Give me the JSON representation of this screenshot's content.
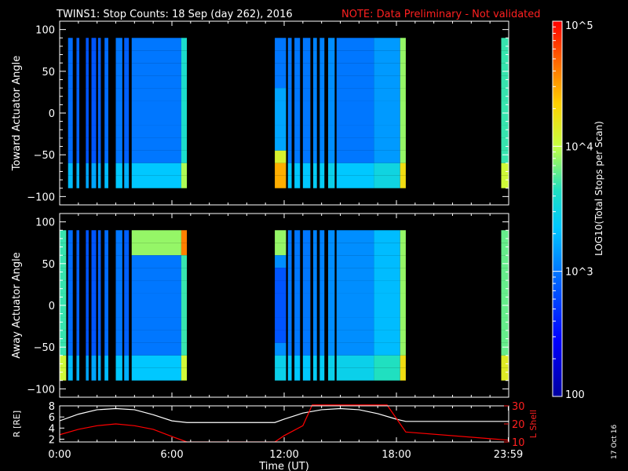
{
  "title": "TWINS1: Stop Counts: 18 Sep (day 262), 2016",
  "note": "NOTE: Data Preliminary - Not validated",
  "stamp": "17 Oct 16",
  "colorbar": {
    "label": "LOG10(Total Stops per Scan)",
    "ticks": [
      {
        "value": 100,
        "label": "100"
      },
      {
        "value": 1000,
        "label": "10^3"
      },
      {
        "value": 10000,
        "label": "10^4"
      },
      {
        "value": 100000,
        "label": "10^5"
      }
    ],
    "range": [
      100,
      100000
    ],
    "scale": "log"
  },
  "chart_data": [
    {
      "type": "heatmap",
      "ylabel": "Toward Actuator Angle",
      "xlim": [
        0,
        24
      ],
      "ylim": [
        -110,
        110
      ],
      "yticks": [
        -100,
        -50,
        0,
        50,
        100
      ],
      "xticks": [
        0,
        6,
        12,
        18,
        24
      ],
      "note": "Spectrogram of log10 stop counts vs time (UT hours) and actuator angle (-90 to 90 deg)",
      "data_blocks": [
        {
          "start": 0.45,
          "end": 0.7,
          "level": 2.95
        },
        {
          "start": 0.9,
          "end": 1.05,
          "level": 2.9
        },
        {
          "start": 1.4,
          "end": 1.55,
          "level": 2.85
        },
        {
          "start": 1.7,
          "end": 1.95,
          "level": 2.85
        },
        {
          "start": 2.05,
          "end": 2.2,
          "level": 2.9
        },
        {
          "start": 2.4,
          "end": 2.6,
          "level": 2.95
        },
        {
          "start": 3.0,
          "end": 3.35,
          "level": 3.0
        },
        {
          "start": 3.45,
          "end": 3.7,
          "level": 2.9
        },
        {
          "start": 3.85,
          "end": 6.5,
          "level": 3.0
        },
        {
          "start": 6.5,
          "end": 6.8,
          "level": 3.6
        },
        {
          "start": 11.5,
          "end": 12.1,
          "level": 3.2
        },
        {
          "start": 12.2,
          "end": 12.4,
          "level": 3.0
        },
        {
          "start": 12.55,
          "end": 12.85,
          "level": 3.0
        },
        {
          "start": 13.0,
          "end": 13.4,
          "level": 3.0
        },
        {
          "start": 13.55,
          "end": 13.75,
          "level": 3.05
        },
        {
          "start": 13.9,
          "end": 14.15,
          "level": 3.05
        },
        {
          "start": 14.35,
          "end": 14.7,
          "level": 3.1
        },
        {
          "start": 14.8,
          "end": 16.8,
          "level": 3.0
        },
        {
          "start": 16.8,
          "end": 18.2,
          "level": 3.15
        },
        {
          "start": 18.2,
          "end": 18.5,
          "level": 3.9
        },
        {
          "start": 23.6,
          "end": 24.0,
          "level": 3.7
        }
      ]
    },
    {
      "type": "heatmap",
      "ylabel": "Away Actuator Angle",
      "xlim": [
        0,
        24
      ],
      "ylim": [
        -110,
        110
      ],
      "yticks": [
        -100,
        -50,
        0,
        50,
        100
      ],
      "xticks": [
        0,
        6,
        12,
        18,
        24
      ],
      "note": "Spectrogram of log10 stop counts vs time (UT hours) and actuator angle (-90 to 90 deg)",
      "data_blocks": [
        {
          "start": 0.0,
          "end": 0.35,
          "level": 3.7
        },
        {
          "start": 0.45,
          "end": 0.7,
          "level": 2.95
        },
        {
          "start": 0.9,
          "end": 1.05,
          "level": 2.9
        },
        {
          "start": 1.4,
          "end": 1.55,
          "level": 2.85
        },
        {
          "start": 1.7,
          "end": 1.95,
          "level": 2.85
        },
        {
          "start": 2.05,
          "end": 2.2,
          "level": 2.9
        },
        {
          "start": 2.4,
          "end": 2.6,
          "level": 2.95
        },
        {
          "start": 3.0,
          "end": 3.35,
          "level": 3.0
        },
        {
          "start": 3.45,
          "end": 3.7,
          "level": 2.9
        },
        {
          "start": 3.85,
          "end": 6.5,
          "level": 3.0
        },
        {
          "start": 6.5,
          "end": 6.8,
          "level": 3.7
        },
        {
          "start": 11.5,
          "end": 12.1,
          "level": 3.1
        },
        {
          "start": 12.2,
          "end": 12.4,
          "level": 3.0
        },
        {
          "start": 12.55,
          "end": 12.85,
          "level": 3.0
        },
        {
          "start": 13.0,
          "end": 13.4,
          "level": 3.0
        },
        {
          "start": 13.55,
          "end": 13.75,
          "level": 3.05
        },
        {
          "start": 13.9,
          "end": 14.15,
          "level": 3.05
        },
        {
          "start": 14.35,
          "end": 14.7,
          "level": 3.1
        },
        {
          "start": 14.8,
          "end": 16.8,
          "level": 3.1
        },
        {
          "start": 16.8,
          "end": 18.2,
          "level": 3.3
        },
        {
          "start": 18.2,
          "end": 18.5,
          "level": 3.9
        },
        {
          "start": 23.6,
          "end": 24.0,
          "level": 3.8
        }
      ]
    },
    {
      "type": "line",
      "xlabel": "Time (UT)",
      "ylabel": "R [RE]",
      "y2label": "L Shell",
      "xlim": [
        0,
        24
      ],
      "ylim": [
        1.5,
        8
      ],
      "y2lim": [
        10,
        30
      ],
      "yticks": [
        2,
        4,
        6,
        8
      ],
      "y2ticks": [
        10,
        20,
        30
      ],
      "xtick_labels": [
        "0:00",
        "6:00",
        "12:00",
        "18:00",
        "23:59"
      ],
      "xticks": [
        0,
        6,
        12,
        18,
        23.98
      ],
      "series": [
        {
          "name": "R",
          "color": "#ffffff",
          "x": [
            0,
            1,
            2,
            3,
            4,
            5,
            6,
            6.8,
            11.5,
            12,
            13,
            14,
            15,
            16,
            17,
            18,
            18.5,
            24
          ],
          "y": [
            5.3,
            6.5,
            7.3,
            7.5,
            7.3,
            6.4,
            5.3,
            5.0,
            5.0,
            5.6,
            6.7,
            7.3,
            7.5,
            7.3,
            6.6,
            5.6,
            5.2,
            5.2
          ]
        },
        {
          "name": "L Shell",
          "color": "#ff0000",
          "x": [
            0,
            1,
            2,
            3,
            4,
            5,
            6,
            6.8,
            11.5,
            12,
            13,
            13.5,
            17.5,
            18,
            18.5,
            24
          ],
          "y": [
            14,
            17,
            19,
            20,
            19,
            17,
            13,
            10,
            10,
            13.5,
            19,
            30.5,
            30.5,
            23,
            15.5,
            11
          ]
        }
      ]
    }
  ]
}
